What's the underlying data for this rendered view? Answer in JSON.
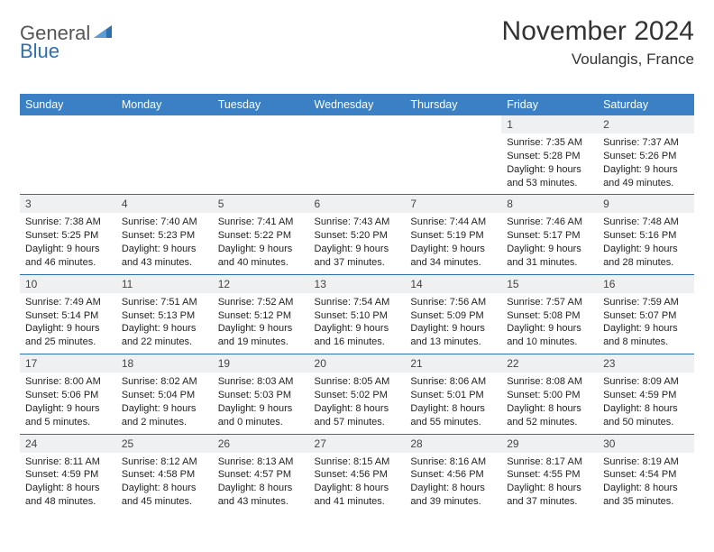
{
  "logo": {
    "part1": "General",
    "part2": "Blue"
  },
  "title": "November 2024",
  "location": "Voulangis, France",
  "colors": {
    "header_bg": "#3b7fc4",
    "header_text": "#ffffff",
    "rule": "#2f6fb0",
    "daynum_bg": "#eef0f2",
    "text": "#222222",
    "logo_gray": "#555555",
    "logo_blue": "#2f6fb0"
  },
  "day_headers": [
    "Sunday",
    "Monday",
    "Tuesday",
    "Wednesday",
    "Thursday",
    "Friday",
    "Saturday"
  ],
  "weeks": [
    [
      {
        "num": "",
        "lines": []
      },
      {
        "num": "",
        "lines": []
      },
      {
        "num": "",
        "lines": []
      },
      {
        "num": "",
        "lines": []
      },
      {
        "num": "",
        "lines": []
      },
      {
        "num": "1",
        "lines": [
          "Sunrise: 7:35 AM",
          "Sunset: 5:28 PM",
          "Daylight: 9 hours and 53 minutes."
        ]
      },
      {
        "num": "2",
        "lines": [
          "Sunrise: 7:37 AM",
          "Sunset: 5:26 PM",
          "Daylight: 9 hours and 49 minutes."
        ]
      }
    ],
    [
      {
        "num": "3",
        "lines": [
          "Sunrise: 7:38 AM",
          "Sunset: 5:25 PM",
          "Daylight: 9 hours and 46 minutes."
        ]
      },
      {
        "num": "4",
        "lines": [
          "Sunrise: 7:40 AM",
          "Sunset: 5:23 PM",
          "Daylight: 9 hours and 43 minutes."
        ]
      },
      {
        "num": "5",
        "lines": [
          "Sunrise: 7:41 AM",
          "Sunset: 5:22 PM",
          "Daylight: 9 hours and 40 minutes."
        ]
      },
      {
        "num": "6",
        "lines": [
          "Sunrise: 7:43 AM",
          "Sunset: 5:20 PM",
          "Daylight: 9 hours and 37 minutes."
        ]
      },
      {
        "num": "7",
        "lines": [
          "Sunrise: 7:44 AM",
          "Sunset: 5:19 PM",
          "Daylight: 9 hours and 34 minutes."
        ]
      },
      {
        "num": "8",
        "lines": [
          "Sunrise: 7:46 AM",
          "Sunset: 5:17 PM",
          "Daylight: 9 hours and 31 minutes."
        ]
      },
      {
        "num": "9",
        "lines": [
          "Sunrise: 7:48 AM",
          "Sunset: 5:16 PM",
          "Daylight: 9 hours and 28 minutes."
        ]
      }
    ],
    [
      {
        "num": "10",
        "lines": [
          "Sunrise: 7:49 AM",
          "Sunset: 5:14 PM",
          "Daylight: 9 hours and 25 minutes."
        ]
      },
      {
        "num": "11",
        "lines": [
          "Sunrise: 7:51 AM",
          "Sunset: 5:13 PM",
          "Daylight: 9 hours and 22 minutes."
        ]
      },
      {
        "num": "12",
        "lines": [
          "Sunrise: 7:52 AM",
          "Sunset: 5:12 PM",
          "Daylight: 9 hours and 19 minutes."
        ]
      },
      {
        "num": "13",
        "lines": [
          "Sunrise: 7:54 AM",
          "Sunset: 5:10 PM",
          "Daylight: 9 hours and 16 minutes."
        ]
      },
      {
        "num": "14",
        "lines": [
          "Sunrise: 7:56 AM",
          "Sunset: 5:09 PM",
          "Daylight: 9 hours and 13 minutes."
        ]
      },
      {
        "num": "15",
        "lines": [
          "Sunrise: 7:57 AM",
          "Sunset: 5:08 PM",
          "Daylight: 9 hours and 10 minutes."
        ]
      },
      {
        "num": "16",
        "lines": [
          "Sunrise: 7:59 AM",
          "Sunset: 5:07 PM",
          "Daylight: 9 hours and 8 minutes."
        ]
      }
    ],
    [
      {
        "num": "17",
        "lines": [
          "Sunrise: 8:00 AM",
          "Sunset: 5:06 PM",
          "Daylight: 9 hours and 5 minutes."
        ]
      },
      {
        "num": "18",
        "lines": [
          "Sunrise: 8:02 AM",
          "Sunset: 5:04 PM",
          "Daylight: 9 hours and 2 minutes."
        ]
      },
      {
        "num": "19",
        "lines": [
          "Sunrise: 8:03 AM",
          "Sunset: 5:03 PM",
          "Daylight: 9 hours and 0 minutes."
        ]
      },
      {
        "num": "20",
        "lines": [
          "Sunrise: 8:05 AM",
          "Sunset: 5:02 PM",
          "Daylight: 8 hours and 57 minutes."
        ]
      },
      {
        "num": "21",
        "lines": [
          "Sunrise: 8:06 AM",
          "Sunset: 5:01 PM",
          "Daylight: 8 hours and 55 minutes."
        ]
      },
      {
        "num": "22",
        "lines": [
          "Sunrise: 8:08 AM",
          "Sunset: 5:00 PM",
          "Daylight: 8 hours and 52 minutes."
        ]
      },
      {
        "num": "23",
        "lines": [
          "Sunrise: 8:09 AM",
          "Sunset: 4:59 PM",
          "Daylight: 8 hours and 50 minutes."
        ]
      }
    ],
    [
      {
        "num": "24",
        "lines": [
          "Sunrise: 8:11 AM",
          "Sunset: 4:59 PM",
          "Daylight: 8 hours and 48 minutes."
        ]
      },
      {
        "num": "25",
        "lines": [
          "Sunrise: 8:12 AM",
          "Sunset: 4:58 PM",
          "Daylight: 8 hours and 45 minutes."
        ]
      },
      {
        "num": "26",
        "lines": [
          "Sunrise: 8:13 AM",
          "Sunset: 4:57 PM",
          "Daylight: 8 hours and 43 minutes."
        ]
      },
      {
        "num": "27",
        "lines": [
          "Sunrise: 8:15 AM",
          "Sunset: 4:56 PM",
          "Daylight: 8 hours and 41 minutes."
        ]
      },
      {
        "num": "28",
        "lines": [
          "Sunrise: 8:16 AM",
          "Sunset: 4:56 PM",
          "Daylight: 8 hours and 39 minutes."
        ]
      },
      {
        "num": "29",
        "lines": [
          "Sunrise: 8:17 AM",
          "Sunset: 4:55 PM",
          "Daylight: 8 hours and 37 minutes."
        ]
      },
      {
        "num": "30",
        "lines": [
          "Sunrise: 8:19 AM",
          "Sunset: 4:54 PM",
          "Daylight: 8 hours and 35 minutes."
        ]
      }
    ]
  ]
}
